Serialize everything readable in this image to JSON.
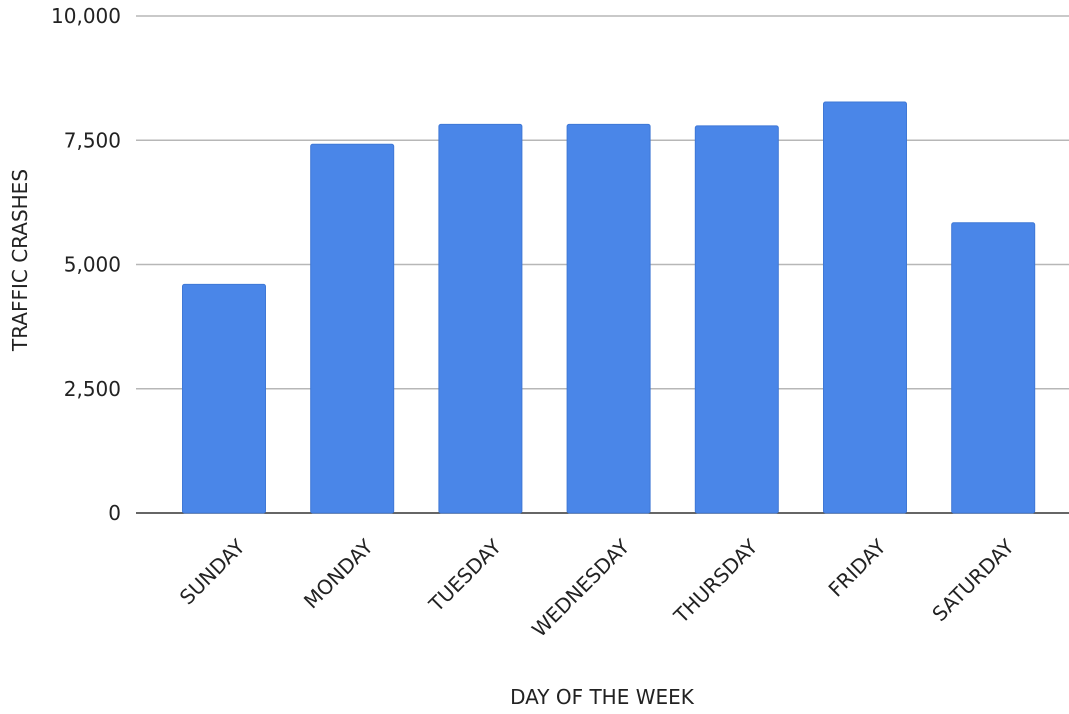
{
  "chart_data": {
    "type": "bar",
    "title": "",
    "xlabel": "DAY OF THE WEEK",
    "ylabel": "TRAFFIC CRASHES",
    "categories": [
      "SUNDAY",
      "MONDAY",
      "TUESDAY",
      "WEDNESDAY",
      "THURSDAY",
      "FRIDAY",
      "SATURDAY"
    ],
    "series": [
      {
        "values": [
          4600,
          7420,
          7820,
          7820,
          7790,
          8270,
          5840
        ],
        "color": "#4a86e8"
      }
    ],
    "ylim": [
      0,
      10000
    ],
    "yticks": [
      0,
      2500,
      5000,
      7500,
      10000
    ],
    "ytick_labels": [
      "0",
      "2,500",
      "5,000",
      "7,500",
      "10,000"
    ],
    "grid": true,
    "legend": "none"
  }
}
